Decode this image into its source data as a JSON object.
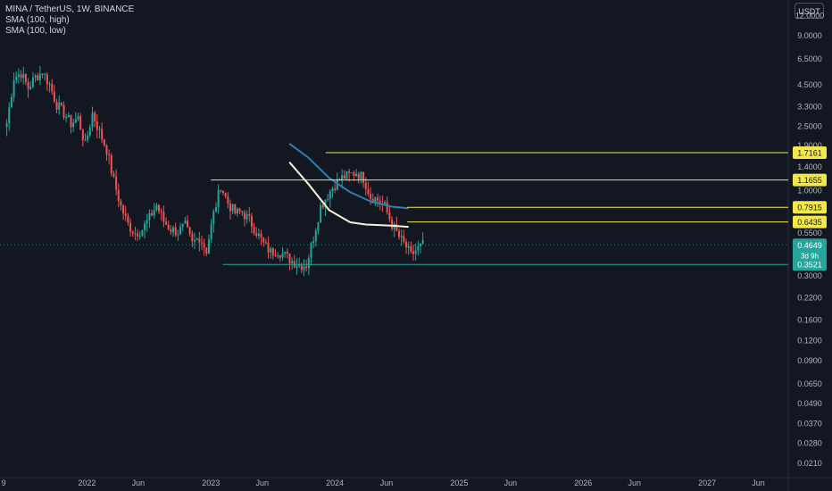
{
  "header": {
    "symbol": "MINA / TetherUS, 1W, BINANCE",
    "indicators": [
      "SMA (100, high)",
      "SMA (100, low)"
    ],
    "currency": "USDT"
  },
  "colors": {
    "background": "#131722",
    "up": "#26a69a",
    "down": "#ef5350",
    "sma_high": "#2f7fb3",
    "sma_low": "#f7f3da",
    "level": "#f2e84b",
    "support": "#26a69a"
  },
  "chart_data": {
    "type": "candlestick",
    "y_scale": "log",
    "ylim": [
      0.019,
      13.5
    ],
    "xlim": [
      "2021-04-20",
      "2027-08-20"
    ],
    "x_tick_labels": [
      {
        "date": "2021-05-01",
        "label": "9"
      },
      {
        "date": "2022-01-01",
        "label": "2022"
      },
      {
        "date": "2022-06-01",
        "label": "Jun"
      },
      {
        "date": "2023-01-01",
        "label": "2023"
      },
      {
        "date": "2023-06-01",
        "label": "Jun"
      },
      {
        "date": "2024-01-01",
        "label": "2024"
      },
      {
        "date": "2024-06-01",
        "label": "Jun"
      },
      {
        "date": "2025-01-01",
        "label": "2025"
      },
      {
        "date": "2025-06-01",
        "label": "Jun"
      },
      {
        "date": "2026-01-01",
        "label": "2026"
      },
      {
        "date": "2026-06-01",
        "label": "Jun"
      },
      {
        "date": "2027-01-01",
        "label": "2027"
      },
      {
        "date": "2027-06-01",
        "label": "Jun"
      }
    ],
    "y_tick_labels": [
      {
        "value": 12.0,
        "label": "12.0000"
      },
      {
        "value": 9.0,
        "label": "9.0000"
      },
      {
        "value": 6.5,
        "label": "6.5000"
      },
      {
        "value": 4.5,
        "label": "4.5000"
      },
      {
        "value": 3.3,
        "label": "3.3000"
      },
      {
        "value": 2.5,
        "label": "2.5000"
      },
      {
        "value": 1.9,
        "label": "1.9000"
      },
      {
        "value": 1.4,
        "label": "1.4000"
      },
      {
        "value": 1.0,
        "label": "1.0000"
      },
      {
        "value": 0.55,
        "label": "0.5500"
      },
      {
        "value": 0.3,
        "label": "0.3000"
      },
      {
        "value": 0.22,
        "label": "0.2200"
      },
      {
        "value": 0.16,
        "label": "0.1600"
      },
      {
        "value": 0.12,
        "label": "0.1200"
      },
      {
        "value": 0.09,
        "label": "0.0900"
      },
      {
        "value": 0.065,
        "label": "0.0650"
      },
      {
        "value": 0.049,
        "label": "0.0490"
      },
      {
        "value": 0.037,
        "label": "0.0370"
      },
      {
        "value": 0.028,
        "label": "0.0280"
      },
      {
        "value": 0.021,
        "label": "0.0210"
      }
    ],
    "price_anchors": [
      [
        "2021-05-10",
        2.6
      ],
      [
        "2021-05-31",
        5.0
      ],
      [
        "2021-06-21",
        5.3
      ],
      [
        "2021-07-12",
        4.3
      ],
      [
        "2021-08-02",
        5.0
      ],
      [
        "2021-08-23",
        5.4
      ],
      [
        "2021-09-13",
        4.5
      ],
      [
        "2021-10-04",
        3.4
      ],
      [
        "2021-10-25",
        3.0
      ],
      [
        "2021-11-15",
        2.6
      ],
      [
        "2021-12-06",
        2.8
      ],
      [
        "2021-12-27",
        1.9
      ],
      [
        "2022-01-17",
        3.0
      ],
      [
        "2022-02-07",
        2.3
      ],
      [
        "2022-02-28",
        1.8
      ],
      [
        "2022-03-21",
        1.15
      ],
      [
        "2022-04-11",
        0.8
      ],
      [
        "2022-05-02",
        0.62
      ],
      [
        "2022-05-23",
        0.55
      ],
      [
        "2022-06-13",
        0.58
      ],
      [
        "2022-07-04",
        0.68
      ],
      [
        "2022-07-25",
        0.82
      ],
      [
        "2022-08-15",
        0.65
      ],
      [
        "2022-09-05",
        0.58
      ],
      [
        "2022-09-26",
        0.56
      ],
      [
        "2022-10-17",
        0.61
      ],
      [
        "2022-11-07",
        0.47
      ],
      [
        "2022-11-28",
        0.52
      ],
      [
        "2022-12-19",
        0.43
      ],
      [
        "2023-01-09",
        0.72
      ],
      [
        "2023-01-30",
        1.08
      ],
      [
        "2023-02-20",
        0.84
      ],
      [
        "2023-03-13",
        0.73
      ],
      [
        "2023-04-03",
        0.74
      ],
      [
        "2023-04-24",
        0.66
      ],
      [
        "2023-05-15",
        0.56
      ],
      [
        "2023-06-05",
        0.47
      ],
      [
        "2023-06-26",
        0.42
      ],
      [
        "2023-07-17",
        0.43
      ],
      [
        "2023-08-07",
        0.4
      ],
      [
        "2023-08-28",
        0.37
      ],
      [
        "2023-09-18",
        0.35
      ],
      [
        "2023-10-09",
        0.35
      ],
      [
        "2023-10-30",
        0.52
      ],
      [
        "2023-11-20",
        0.8
      ],
      [
        "2023-12-11",
        0.95
      ],
      [
        "2024-01-01",
        1.1
      ],
      [
        "2024-01-22",
        1.2
      ],
      [
        "2024-02-12",
        1.25
      ],
      [
        "2024-03-04",
        1.3
      ],
      [
        "2024-03-25",
        1.2
      ],
      [
        "2024-04-15",
        0.92
      ],
      [
        "2024-05-06",
        0.88
      ],
      [
        "2024-05-27",
        0.8
      ],
      [
        "2024-06-17",
        0.62
      ],
      [
        "2024-07-08",
        0.52
      ],
      [
        "2024-07-29",
        0.45
      ],
      [
        "2024-08-12",
        0.4
      ],
      [
        "2024-08-26",
        0.43
      ],
      [
        "2024-09-16",
        0.465
      ]
    ],
    "sma_high": {
      "name": "SMA (100, high)",
      "points": [
        [
          "2023-08-20",
          1.95
        ],
        [
          "2023-10-15",
          1.6
        ],
        [
          "2023-12-15",
          1.2
        ],
        [
          "2024-02-15",
          0.98
        ],
        [
          "2024-04-15",
          0.86
        ],
        [
          "2024-06-15",
          0.8
        ],
        [
          "2024-08-05",
          0.78
        ]
      ]
    },
    "sma_low": {
      "name": "SMA (100, low)",
      "points": [
        [
          "2023-08-20",
          1.5
        ],
        [
          "2023-10-15",
          1.1
        ],
        [
          "2023-12-15",
          0.76
        ],
        [
          "2024-02-15",
          0.64
        ],
        [
          "2024-04-01",
          0.62
        ],
        [
          "2024-06-15",
          0.61
        ],
        [
          "2024-08-05",
          0.6
        ]
      ]
    },
    "levels": [
      {
        "value": 1.7161,
        "label": "1.7161",
        "start": "2023-12-05",
        "color": "#f2e84b"
      },
      {
        "value": 1.1655,
        "label": "1.1655",
        "start": "2023-01-01",
        "color": "#f2e84b"
      },
      {
        "value": 0.7915,
        "label": "0.7915",
        "start": "2024-08-01",
        "color": "#f2e84b"
      },
      {
        "value": 0.6435,
        "label": "0.6435",
        "start": "2024-08-01",
        "color": "#f2e84b"
      },
      {
        "value": 0.3521,
        "label": "0.3521",
        "start": "2023-02-05",
        "color": "#26a69a"
      }
    ],
    "current_price": {
      "value": 0.4649,
      "label": "0.4649",
      "countdown": "3d 9h"
    }
  }
}
